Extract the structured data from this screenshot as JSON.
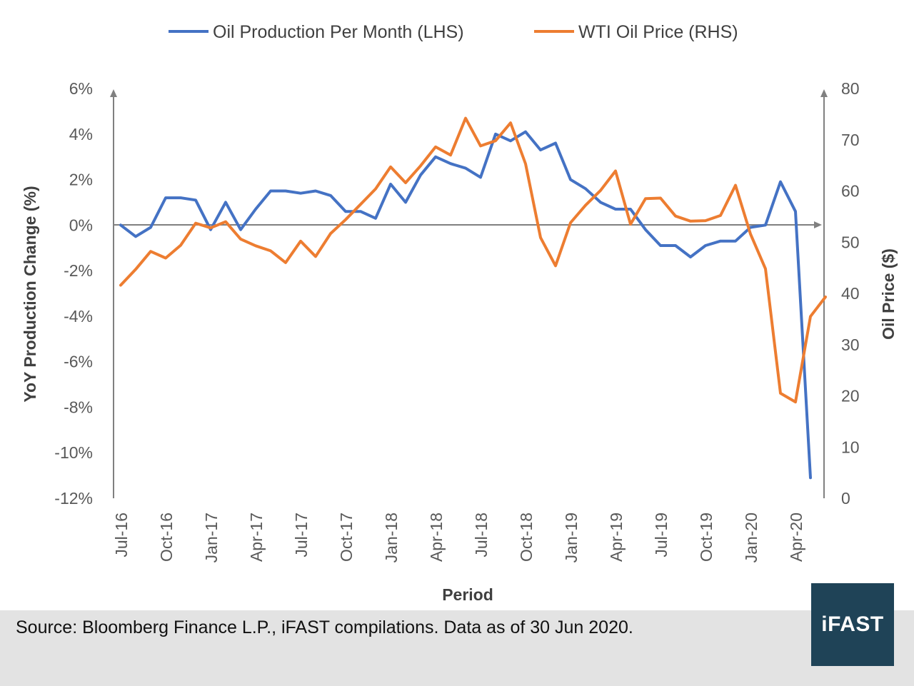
{
  "colors": {
    "production": "#4472c4",
    "price": "#ed7d31",
    "axis": "#808080",
    "logo_bg": "#1f4357"
  },
  "chart_data": {
    "type": "line",
    "title": "",
    "xlabel": "Period",
    "ylabel": "YoY Production Change (%)",
    "y2label": "Oil Price ($)",
    "legend_position": "top",
    "grid": false,
    "ylim": [
      -12,
      6
    ],
    "y2lim": [
      0,
      80
    ],
    "yticks": [
      "6%",
      "4%",
      "2%",
      "0%",
      "-2%",
      "-4%",
      "-6%",
      "-8%",
      "-10%",
      "-12%"
    ],
    "y2ticks": [
      "80",
      "70",
      "60",
      "50",
      "40",
      "30",
      "20",
      "10",
      "0"
    ],
    "x_tick_labels": [
      "Jul-16",
      "Oct-16",
      "Jan-17",
      "Apr-17",
      "Jul-17",
      "Oct-17",
      "Jan-18",
      "Apr-18",
      "Jul-18",
      "Oct-18",
      "Jan-19",
      "Apr-19",
      "Jul-19",
      "Oct-19",
      "Jan-20",
      "Apr-20"
    ],
    "categories": [
      "Jul-16",
      "Aug-16",
      "Sep-16",
      "Oct-16",
      "Nov-16",
      "Dec-16",
      "Jan-17",
      "Feb-17",
      "Mar-17",
      "Apr-17",
      "May-17",
      "Jun-17",
      "Jul-17",
      "Aug-17",
      "Sep-17",
      "Oct-17",
      "Nov-17",
      "Dec-17",
      "Jan-18",
      "Feb-18",
      "Mar-18",
      "Apr-18",
      "May-18",
      "Jun-18",
      "Jul-18",
      "Aug-18",
      "Sep-18",
      "Oct-18",
      "Nov-18",
      "Dec-18",
      "Jan-19",
      "Feb-19",
      "Mar-19",
      "Apr-19",
      "May-19",
      "Jun-19",
      "Jul-19",
      "Aug-19",
      "Sep-19",
      "Oct-19",
      "Nov-19",
      "Dec-19",
      "Jan-20",
      "Feb-20",
      "Mar-20",
      "Apr-20",
      "May-20",
      "Jun-20"
    ],
    "series": [
      {
        "name": "Oil Production Per Month (LHS)",
        "axis": "left",
        "values": [
          0.0,
          -0.5,
          -0.1,
          1.2,
          1.2,
          1.1,
          -0.2,
          1.0,
          -0.2,
          0.7,
          1.5,
          1.5,
          1.4,
          1.5,
          1.3,
          0.6,
          0.6,
          0.3,
          1.8,
          1.0,
          2.2,
          3.0,
          2.7,
          2.5,
          2.1,
          4.0,
          3.7,
          4.1,
          3.3,
          3.6,
          2.0,
          1.6,
          1.0,
          0.7,
          0.7,
          -0.2,
          -0.9,
          -0.9,
          -1.4,
          -0.9,
          -0.7,
          -0.7,
          -0.1,
          0.0,
          1.9,
          0.6,
          -11.1,
          null
        ]
      },
      {
        "name": "WTI Oil Price (RHS)",
        "axis": "right",
        "values": [
          41.6,
          44.7,
          48.2,
          46.9,
          49.4,
          53.7,
          52.8,
          54.0,
          50.6,
          49.3,
          48.3,
          46.0,
          50.2,
          47.2,
          51.7,
          54.4,
          57.4,
          60.4,
          64.7,
          61.6,
          64.9,
          68.6,
          67.0,
          74.2,
          68.8,
          69.8,
          73.3,
          65.3,
          50.9,
          45.4,
          53.8,
          57.2,
          60.1,
          63.9,
          53.5,
          58.5,
          58.6,
          55.1,
          54.1,
          54.2,
          55.2,
          61.1,
          51.6,
          44.8,
          20.5,
          18.8,
          35.5,
          39.3
        ]
      }
    ]
  },
  "footer": {
    "source_text": "Source: Bloomberg Finance L.P., iFAST compilations. Data as of 30 Jun 2020.",
    "logo_text": "iFAST"
  }
}
